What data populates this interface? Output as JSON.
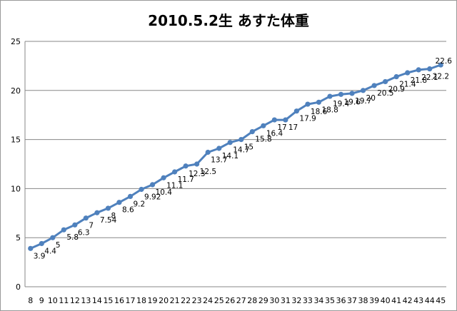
{
  "chart_data": {
    "type": "line",
    "title": "2010.5.2生 あすた体重",
    "xlabel": "",
    "ylabel": "",
    "x": [
      "8",
      "9",
      "10",
      "11",
      "12",
      "13",
      "14",
      "15",
      "16",
      "17",
      "18",
      "19",
      "20",
      "21",
      "22",
      "23",
      "24",
      "25",
      "26",
      "27",
      "28",
      "29",
      "30",
      "31",
      "32",
      "33",
      "34",
      "35",
      "36",
      "37",
      "38",
      "39",
      "40",
      "41",
      "42",
      "43",
      "44",
      "45"
    ],
    "values": [
      3.9,
      4.4,
      5,
      5.8,
      6.3,
      7,
      7.54,
      8,
      8.6,
      9.2,
      9.92,
      10.4,
      11.1,
      11.7,
      12.3,
      12.5,
      13.7,
      14.1,
      14.7,
      15,
      15.8,
      16.4,
      17,
      17,
      17.9,
      18.6,
      18.8,
      19.4,
      19.6,
      19.7,
      20,
      20.5,
      20.9,
      21.4,
      21.8,
      22.1,
      22.2,
      22.6
    ],
    "data_labels": [
      "3.9",
      "4.4",
      "5",
      "5.8",
      "6.3",
      "7",
      "7.54",
      "8",
      "8.6",
      "9.2",
      "9.92",
      "10.4",
      "11.1",
      "11.7",
      "12.3",
      "12.5",
      "13.7",
      "14.1",
      "14.7",
      "15",
      "15.8",
      "16.4",
      "17",
      "17",
      "17.9",
      "18.6",
      "18.8",
      "19.4",
      "19.6",
      "19.7",
      "20",
      "20.5",
      "20.9",
      "21.4",
      "21.8",
      "22.1",
      "22.2",
      "22.6"
    ],
    "ylim": [
      0,
      25
    ],
    "yticks": [
      0,
      5,
      10,
      15,
      20,
      25
    ],
    "grid": true,
    "legend": "none",
    "line_color": "#4f81bd",
    "grid_color": "#878787"
  }
}
